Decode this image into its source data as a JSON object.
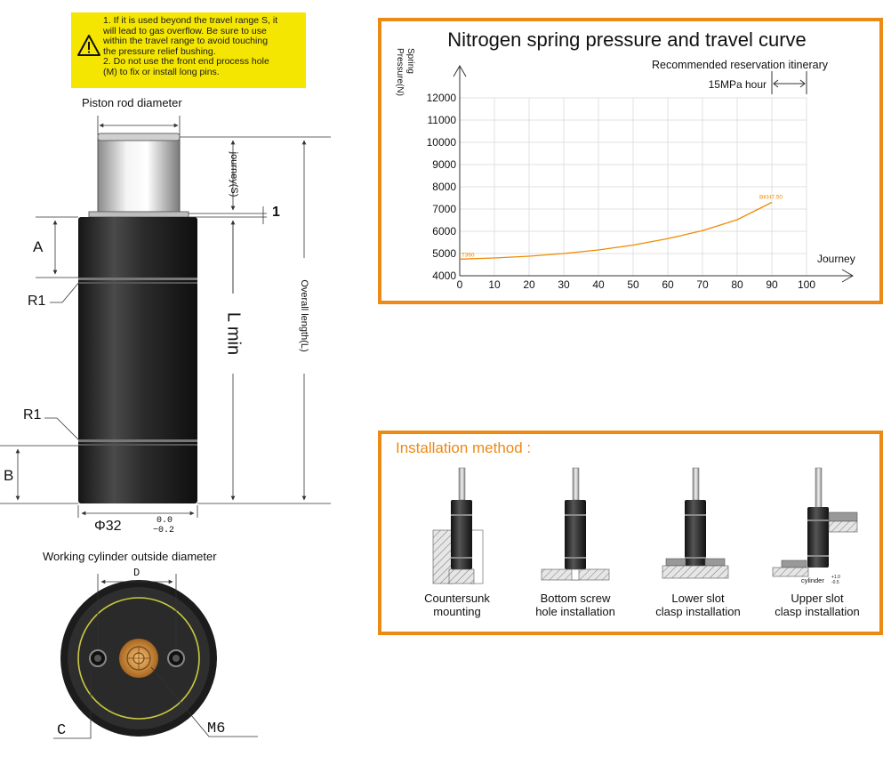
{
  "warning": {
    "lines": [
      "1. If it is used beyond the travel range S, it",
      "will lead to gas overflow. Be sure to use",
      "within the travel range to avoid touching",
      "the pressure relief bushing.",
      "2. Do not use the front end process hole",
      "(M) to fix or install long pins."
    ],
    "icon": "warning-triangle-icon",
    "bg_color": "#f4e600"
  },
  "drawing": {
    "piston_rod_label": "Piston rod diameter",
    "journey_label": "journey(S)",
    "one_label": "1",
    "A_label": "A",
    "R1_top": "R1",
    "R1_bottom": "R1",
    "L_min_label": "L min",
    "overall_length_label": "Overall length(L)",
    "B_label": "B",
    "phi_label": "Φ32",
    "tol_upper": "0.0",
    "tol_lower": "−0.2",
    "cyl_od_label": "Working cylinder outside diameter",
    "D_label": "D",
    "C_label": "C",
    "M6_label": "M6"
  },
  "chart_data": {
    "type": "line",
    "title": "Nitrogen spring pressure and travel curve",
    "ylabel_lines": [
      "Spring",
      "Pressure(N)"
    ],
    "xlabel": "Journey",
    "x_ticks": [
      0,
      10,
      20,
      30,
      40,
      50,
      60,
      70,
      80,
      90,
      100
    ],
    "y_ticks": [
      4000,
      5000,
      6000,
      7000,
      8000,
      9000,
      10000,
      11000,
      12000
    ],
    "xlim": [
      0,
      100
    ],
    "ylim": [
      4000,
      12000
    ],
    "grid": true,
    "series": [
      {
        "values": [
          [
            0,
            4750
          ],
          [
            10,
            4800
          ],
          [
            20,
            4880
          ],
          [
            30,
            5000
          ],
          [
            40,
            5160
          ],
          [
            50,
            5380
          ],
          [
            60,
            5670
          ],
          [
            70,
            6030
          ],
          [
            80,
            6520
          ],
          [
            90,
            7300
          ]
        ]
      }
    ],
    "start_label": "7360",
    "end_label": "BKH7.50",
    "reservation_label": "Recommended reservation itinerary",
    "reservation_sub_label": "15MPa hour",
    "reservation_range": [
      90,
      100
    ],
    "line_color": "#f08a00",
    "grid_color": "#d9d9d9"
  },
  "installation": {
    "title": "Installation method :",
    "title_color": "#ec8a16",
    "methods": [
      {
        "line1": "Countersunk",
        "line2": "mounting"
      },
      {
        "line1": "Bottom screw",
        "line2": "hole installation"
      },
      {
        "line1": "Lower slot",
        "line2": "clasp installation"
      },
      {
        "line1": "Upper slot",
        "line2": "clasp installation"
      }
    ],
    "cylinder_note": "cylinder",
    "cylinder_tol_upper": "+1.0",
    "cylinder_tol_lower": "-0.5"
  },
  "colors": {
    "accent": "#ec8a16",
    "body_dark": "#2a2a2a",
    "brass": "#c8893a",
    "ring_yellow": "#c9c840"
  }
}
